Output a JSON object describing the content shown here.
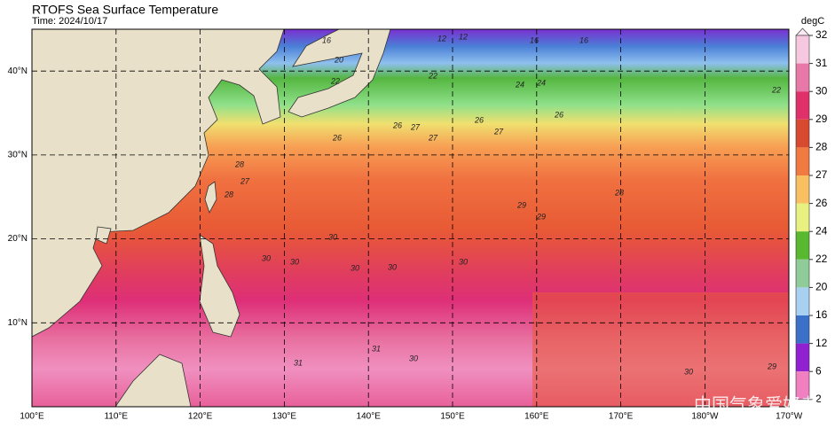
{
  "header": {
    "title": "RTOFS Sea Surface Temperature",
    "time": "Time: 2024/10/17"
  },
  "map": {
    "lon_ticks": [
      {
        "value": 100,
        "label": "100°E"
      },
      {
        "value": 110,
        "label": "110°E"
      },
      {
        "value": 120,
        "label": "120°E"
      },
      {
        "value": 130,
        "label": "130°E"
      },
      {
        "value": 140,
        "label": "140°E"
      },
      {
        "value": 150,
        "label": "150°E"
      },
      {
        "value": 160,
        "label": "160°E"
      },
      {
        "value": 170,
        "label": "170°E"
      },
      {
        "value": 180,
        "label": "180°W"
      },
      {
        "value": 190,
        "label": "170°W"
      }
    ],
    "lat_ticks": [
      {
        "value": 10,
        "label": "10°N"
      },
      {
        "value": 20,
        "label": "20°N"
      },
      {
        "value": 30,
        "label": "30°N"
      },
      {
        "value": 40,
        "label": "40°N"
      }
    ],
    "grid": true
  },
  "colorbar": {
    "unit": "degC",
    "ticks": [
      32,
      31,
      30,
      29,
      28,
      27,
      26,
      24,
      22,
      20,
      16,
      12,
      6,
      2
    ],
    "colors": [
      "#f5c8e0",
      "#e878a8",
      "#e0306a",
      "#d84a30",
      "#f07a40",
      "#f8c060",
      "#e8f080",
      "#58b830",
      "#8fcc9a",
      "#a8d0f0",
      "#3a70c8",
      "#9020d0",
      "#f080c0"
    ]
  },
  "contour_labels": [
    "16",
    "20",
    "22",
    "12",
    "12",
    "16",
    "16",
    "22",
    "24",
    "24",
    "22",
    "26",
    "26",
    "27",
    "27",
    "26",
    "27",
    "26",
    "28",
    "27",
    "28",
    "29",
    "29",
    "28",
    "30",
    "30",
    "30",
    "30",
    "30",
    "30",
    "31",
    "31",
    "30",
    "30",
    "29"
  ],
  "watermark": "中国气象爱好者"
}
